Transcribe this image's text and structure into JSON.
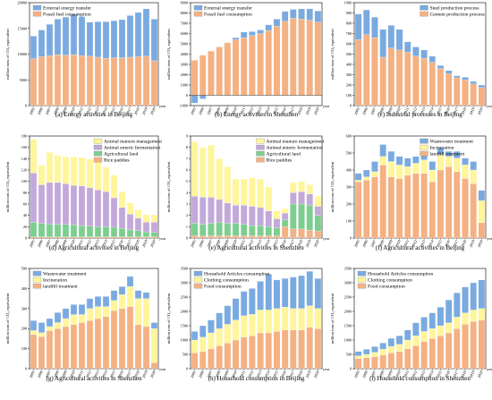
{
  "chart_data": [
    {
      "type": "stacked-bar",
      "caption": "(a) Energy activities in Beijing",
      "ylabel": "million tons of CO₂ equivalent",
      "xlabel": "year",
      "ylim": [
        0,
        20000
      ],
      "yticks": [
        0,
        5000,
        10000,
        15000,
        20000
      ],
      "legend_position": "top-left",
      "categories": [
        "2005",
        "2006",
        "2007",
        "2008",
        "2009",
        "2010",
        "2011",
        "2012",
        "2013",
        "2014",
        "2015",
        "2016",
        "2017",
        "2018",
        "2019",
        "2020"
      ],
      "series": [
        {
          "name": "Fossil fuel consumption",
          "color": "#f4b183",
          "values": [
            9100,
            9500,
            9700,
            9900,
            9800,
            9900,
            9700,
            9600,
            9400,
            9200,
            9300,
            9300,
            9400,
            9500,
            9600,
            8700
          ]
        },
        {
          "name": "External energy transfer",
          "color": "#7aaae0",
          "values": [
            4400,
            5200,
            6100,
            6900,
            7400,
            7800,
            7600,
            6600,
            6900,
            7100,
            7200,
            7400,
            8100,
            8600,
            9200,
            8100
          ]
        }
      ]
    },
    {
      "type": "stacked-bar",
      "caption": "(b) Energy activities in Shenzhen",
      "ylabel": "million tons of CO₂ equivalent",
      "xlabel": "year",
      "ylim": [
        -1000,
        9000
      ],
      "yticks": [
        -1000,
        0,
        1000,
        2000,
        3000,
        4000,
        5000,
        6000,
        7000,
        8000,
        9000
      ],
      "legend_position": "top-left",
      "categories": [
        "2005",
        "2006",
        "2007",
        "2008",
        "2009",
        "2010",
        "2011",
        "2012",
        "2013",
        "2014",
        "2015",
        "2016",
        "2017",
        "2018",
        "2019",
        "2020"
      ],
      "series": [
        {
          "name": "Fossil fuel consumption",
          "color": "#f4b183",
          "values": [
            3400,
            3900,
            4300,
            4700,
            5100,
            5400,
            5600,
            5800,
            6000,
            6300,
            6700,
            7200,
            7500,
            7400,
            7300,
            7100
          ]
        },
        {
          "name": "External energy transfer",
          "color": "#7aaae0",
          "values": [
            -750,
            -350,
            0,
            0,
            0,
            200,
            550,
            400,
            350,
            550,
            700,
            950,
            850,
            1000,
            1100,
            1100
          ]
        }
      ]
    },
    {
      "type": "stacked-bar",
      "caption": "(c) Industrial processes in Beijing",
      "ylabel": "million tons of CO₂ equivalent",
      "xlabel": "year",
      "ylim": [
        0,
        1000
      ],
      "yticks": [
        0,
        100,
        200,
        300,
        400,
        500,
        600,
        700,
        800,
        900,
        1000
      ],
      "legend_position": "top-right",
      "categories": [
        "2005",
        "2006",
        "2007",
        "2008",
        "2009",
        "2010",
        "2011",
        "2012",
        "2013",
        "2014",
        "2015",
        "2016",
        "2017",
        "2018",
        "2019",
        "2020"
      ],
      "series": [
        {
          "name": "Cement production process",
          "color": "#f4b183",
          "values": [
            640,
            690,
            660,
            470,
            560,
            540,
            520,
            480,
            460,
            420,
            360,
            310,
            270,
            250,
            210,
            175
          ]
        },
        {
          "name": "Steel production process",
          "color": "#7aaae0",
          "values": [
            250,
            240,
            200,
            270,
            220,
            200,
            100,
            90,
            80,
            60,
            30,
            30,
            20,
            25,
            25,
            25
          ]
        }
      ]
    },
    {
      "type": "stacked-bar",
      "caption": "(d) Agricultural activities in Beijing",
      "ylabel": "million tons of CO₂ equivalent",
      "xlabel": "year",
      "ylim": [
        0,
        180
      ],
      "yticks": [
        0,
        20,
        40,
        60,
        80,
        100,
        120,
        140,
        160,
        180
      ],
      "legend_position": "top-right",
      "categories": [
        "2005",
        "2006",
        "2007",
        "2008",
        "2009",
        "2010",
        "2011",
        "2012",
        "2013",
        "2014",
        "2015",
        "2016",
        "2017",
        "2018",
        "2019",
        "2020"
      ],
      "series": [
        {
          "name": "Rice paddies",
          "color": "#f4b183",
          "values": [
            2,
            2,
            2,
            2,
            2,
            2,
            2,
            2,
            2,
            2,
            2,
            2,
            2,
            2,
            2,
            2
          ]
        },
        {
          "name": "Agricultural land",
          "color": "#7dce8f",
          "values": [
            26,
            24,
            23,
            22,
            22,
            21,
            20,
            19,
            18,
            18,
            17,
            15,
            13,
            11,
            9,
            8
          ]
        },
        {
          "name": "Animal enteric fermentation",
          "color": "#c3a9d9",
          "values": [
            87,
            68,
            73,
            74,
            72,
            70,
            70,
            68,
            65,
            62,
            52,
            37,
            27,
            22,
            17,
            18
          ]
        },
        {
          "name": "Animal manure management",
          "color": "#fff59a",
          "values": [
            59,
            34,
            53,
            48,
            47,
            50,
            50,
            50,
            49,
            43,
            40,
            28,
            20,
            15,
            13,
            13
          ]
        }
      ]
    },
    {
      "type": "stacked-bar",
      "caption": "(e) Agricultural activities in Shenzhen",
      "ylabel": "million tons of CO₂ equivalent",
      "xlabel": "year",
      "ylim": [
        0,
        9
      ],
      "yticks": [
        0,
        1,
        2,
        3,
        4,
        5,
        6,
        7,
        8,
        9
      ],
      "legend_position": "top-right",
      "categories": [
        "2005",
        "2006",
        "2007",
        "2008",
        "2009",
        "2010",
        "2011",
        "2012",
        "2013",
        "2014",
        "2015",
        "2016",
        "2017",
        "2018",
        "2019",
        "2020"
      ],
      "series": [
        {
          "name": "Rice paddies",
          "color": "#f4b183",
          "values": [
            0.2,
            0.2,
            0.2,
            0.2,
            0.2,
            0.2,
            0.2,
            0.2,
            0.2,
            0.2,
            0.2,
            1.0,
            0.8,
            0.8,
            0.7,
            0.6
          ]
        },
        {
          "name": "Agricultural land",
          "color": "#7dce8f",
          "values": [
            1.1,
            1.0,
            1.1,
            1.2,
            1.1,
            1.1,
            1.0,
            0.9,
            0.9,
            0.8,
            0.7,
            0.6,
            2.2,
            2.2,
            2.2,
            1.4
          ]
        },
        {
          "name": "Animal enteric fermentation",
          "color": "#c3a9d9",
          "values": [
            2.4,
            2.4,
            2.3,
            2.0,
            1.8,
            1.6,
            1.7,
            1.7,
            1.6,
            1.4,
            0.8,
            0.6,
            1.0,
            1.1,
            1.0,
            0.8
          ]
        },
        {
          "name": "Animal manure management",
          "color": "#fff59a",
          "values": [
            4.8,
            4.4,
            4.6,
            3.6,
            3.2,
            2.3,
            2.3,
            2.5,
            2.5,
            2.1,
            0.7,
            0.4,
            0.9,
            0.9,
            0.8,
            0.9
          ]
        }
      ]
    },
    {
      "type": "stacked-bar",
      "caption": "(f) Agricultural activities in Beijing",
      "ylabel": "million tons of CO₂ equivalent",
      "xlabel": "year",
      "ylim": [
        0,
        600
      ],
      "yticks": [
        0,
        100,
        200,
        300,
        400,
        500,
        600
      ],
      "legend_position": "top-right",
      "categories": [
        "2005",
        "2006",
        "2007",
        "2008",
        "2009",
        "2010",
        "2011",
        "2012",
        "2013",
        "2014",
        "2015",
        "2016",
        "2017",
        "2018",
        "2019",
        "2020"
      ],
      "series": [
        {
          "name": "landfill treatment",
          "color": "#f4b183",
          "values": [
            330,
            340,
            360,
            430,
            360,
            350,
            370,
            380,
            380,
            330,
            400,
            420,
            390,
            350,
            320,
            90
          ]
        },
        {
          "name": "Incineration",
          "color": "#fff59a",
          "values": [
            10,
            20,
            30,
            50,
            90,
            80,
            50,
            60,
            80,
            70,
            90,
            60,
            80,
            80,
            80,
            130
          ]
        },
        {
          "name": "Wastewater treatment",
          "color": "#7aaae0",
          "values": [
            40,
            40,
            60,
            70,
            60,
            50,
            50,
            40,
            50,
            50,
            40,
            30,
            40,
            40,
            50,
            60
          ]
        }
      ]
    },
    {
      "type": "stacked-bar",
      "caption": "(g) Agricultural activities in Shenzhen",
      "ylabel": "million tons of CO₂ equivalent",
      "xlabel": "year",
      "ylim": [
        0,
        500
      ],
      "yticks": [
        0,
        100,
        200,
        300,
        400,
        500
      ],
      "legend_position": "top-left",
      "categories": [
        "2005",
        "2006",
        "2007",
        "2008",
        "2009",
        "2010",
        "2011",
        "2012",
        "2013",
        "2014",
        "2015",
        "2016",
        "2017",
        "2018",
        "2019",
        "2020"
      ],
      "series": [
        {
          "name": "landfill treatment",
          "color": "#f4b183",
          "values": [
            170,
            160,
            190,
            200,
            210,
            220,
            230,
            240,
            250,
            260,
            290,
            300,
            310,
            220,
            210,
            30
          ]
        },
        {
          "name": "Incineration",
          "color": "#fff59a",
          "values": [
            20,
            20,
            20,
            30,
            40,
            50,
            40,
            60,
            60,
            50,
            50,
            70,
            100,
            130,
            140,
            170
          ]
        },
        {
          "name": "Wastewater treatment",
          "color": "#7aaae0",
          "values": [
            50,
            50,
            40,
            50,
            50,
            50,
            50,
            50,
            50,
            50,
            50,
            40,
            50,
            40,
            30,
            30
          ]
        }
      ]
    },
    {
      "type": "stacked-bar",
      "caption": "(h) Household consumption in Beijing",
      "ylabel": "million tons of CO₂ equivalent",
      "xlabel": "year",
      "ylim": [
        0,
        3500
      ],
      "yticks": [
        0,
        500,
        1000,
        1500,
        2000,
        2500,
        3000,
        3500
      ],
      "legend_position": "top-left",
      "categories": [
        "2005",
        "2006",
        "2007",
        "2008",
        "2009",
        "2010",
        "2011",
        "2012",
        "2013",
        "2014",
        "2015",
        "2016",
        "2017",
        "2018",
        "2019",
        "2020"
      ],
      "series": [
        {
          "name": "Food consumption",
          "color": "#f4b183",
          "values": [
            550,
            600,
            700,
            800,
            900,
            1000,
            1100,
            1150,
            1250,
            1250,
            1300,
            1350,
            1350,
            1350,
            1450,
            1400
          ]
        },
        {
          "name": "Clothing consumption",
          "color": "#fff59a",
          "values": [
            450,
            500,
            550,
            600,
            650,
            700,
            750,
            750,
            800,
            800,
            800,
            800,
            750,
            750,
            750,
            700
          ]
        },
        {
          "name": "Household Articles consumption",
          "color": "#7aaae0",
          "values": [
            300,
            400,
            450,
            550,
            650,
            750,
            850,
            900,
            1000,
            1250,
            1000,
            1000,
            1100,
            1150,
            1200,
            1050
          ]
        }
      ]
    },
    {
      "type": "stacked-bar",
      "caption": "(i) Household consumption in Shenzhen",
      "ylabel": "million tons of CO₂ equivalent",
      "xlabel": "year",
      "ylim": [
        0,
        3500
      ],
      "yticks": [
        0,
        500,
        1000,
        1500,
        2000,
        2500,
        3000,
        3500
      ],
      "legend_position": "top-left",
      "categories": [
        "2005",
        "2006",
        "2007",
        "2008",
        "2009",
        "2010",
        "2011",
        "2012",
        "2013",
        "2014",
        "2015",
        "2016",
        "2017",
        "2018",
        "2019",
        "2020"
      ],
      "series": [
        {
          "name": "Food consumption",
          "color": "#f4b183",
          "values": [
            350,
            380,
            420,
            480,
            550,
            600,
            700,
            800,
            950,
            1050,
            1150,
            1250,
            1400,
            1550,
            1650,
            1700
          ]
        },
        {
          "name": "Clothing consumption",
          "color": "#fff59a",
          "values": [
            100,
            120,
            150,
            200,
            230,
            250,
            300,
            350,
            350,
            350,
            350,
            350,
            400,
            400,
            400,
            400
          ]
        },
        {
          "name": "Household Articles consumption",
          "color": "#7aaae0",
          "values": [
            150,
            180,
            200,
            220,
            280,
            300,
            350,
            450,
            500,
            550,
            650,
            800,
            850,
            900,
            950,
            1000
          ]
        }
      ]
    }
  ]
}
